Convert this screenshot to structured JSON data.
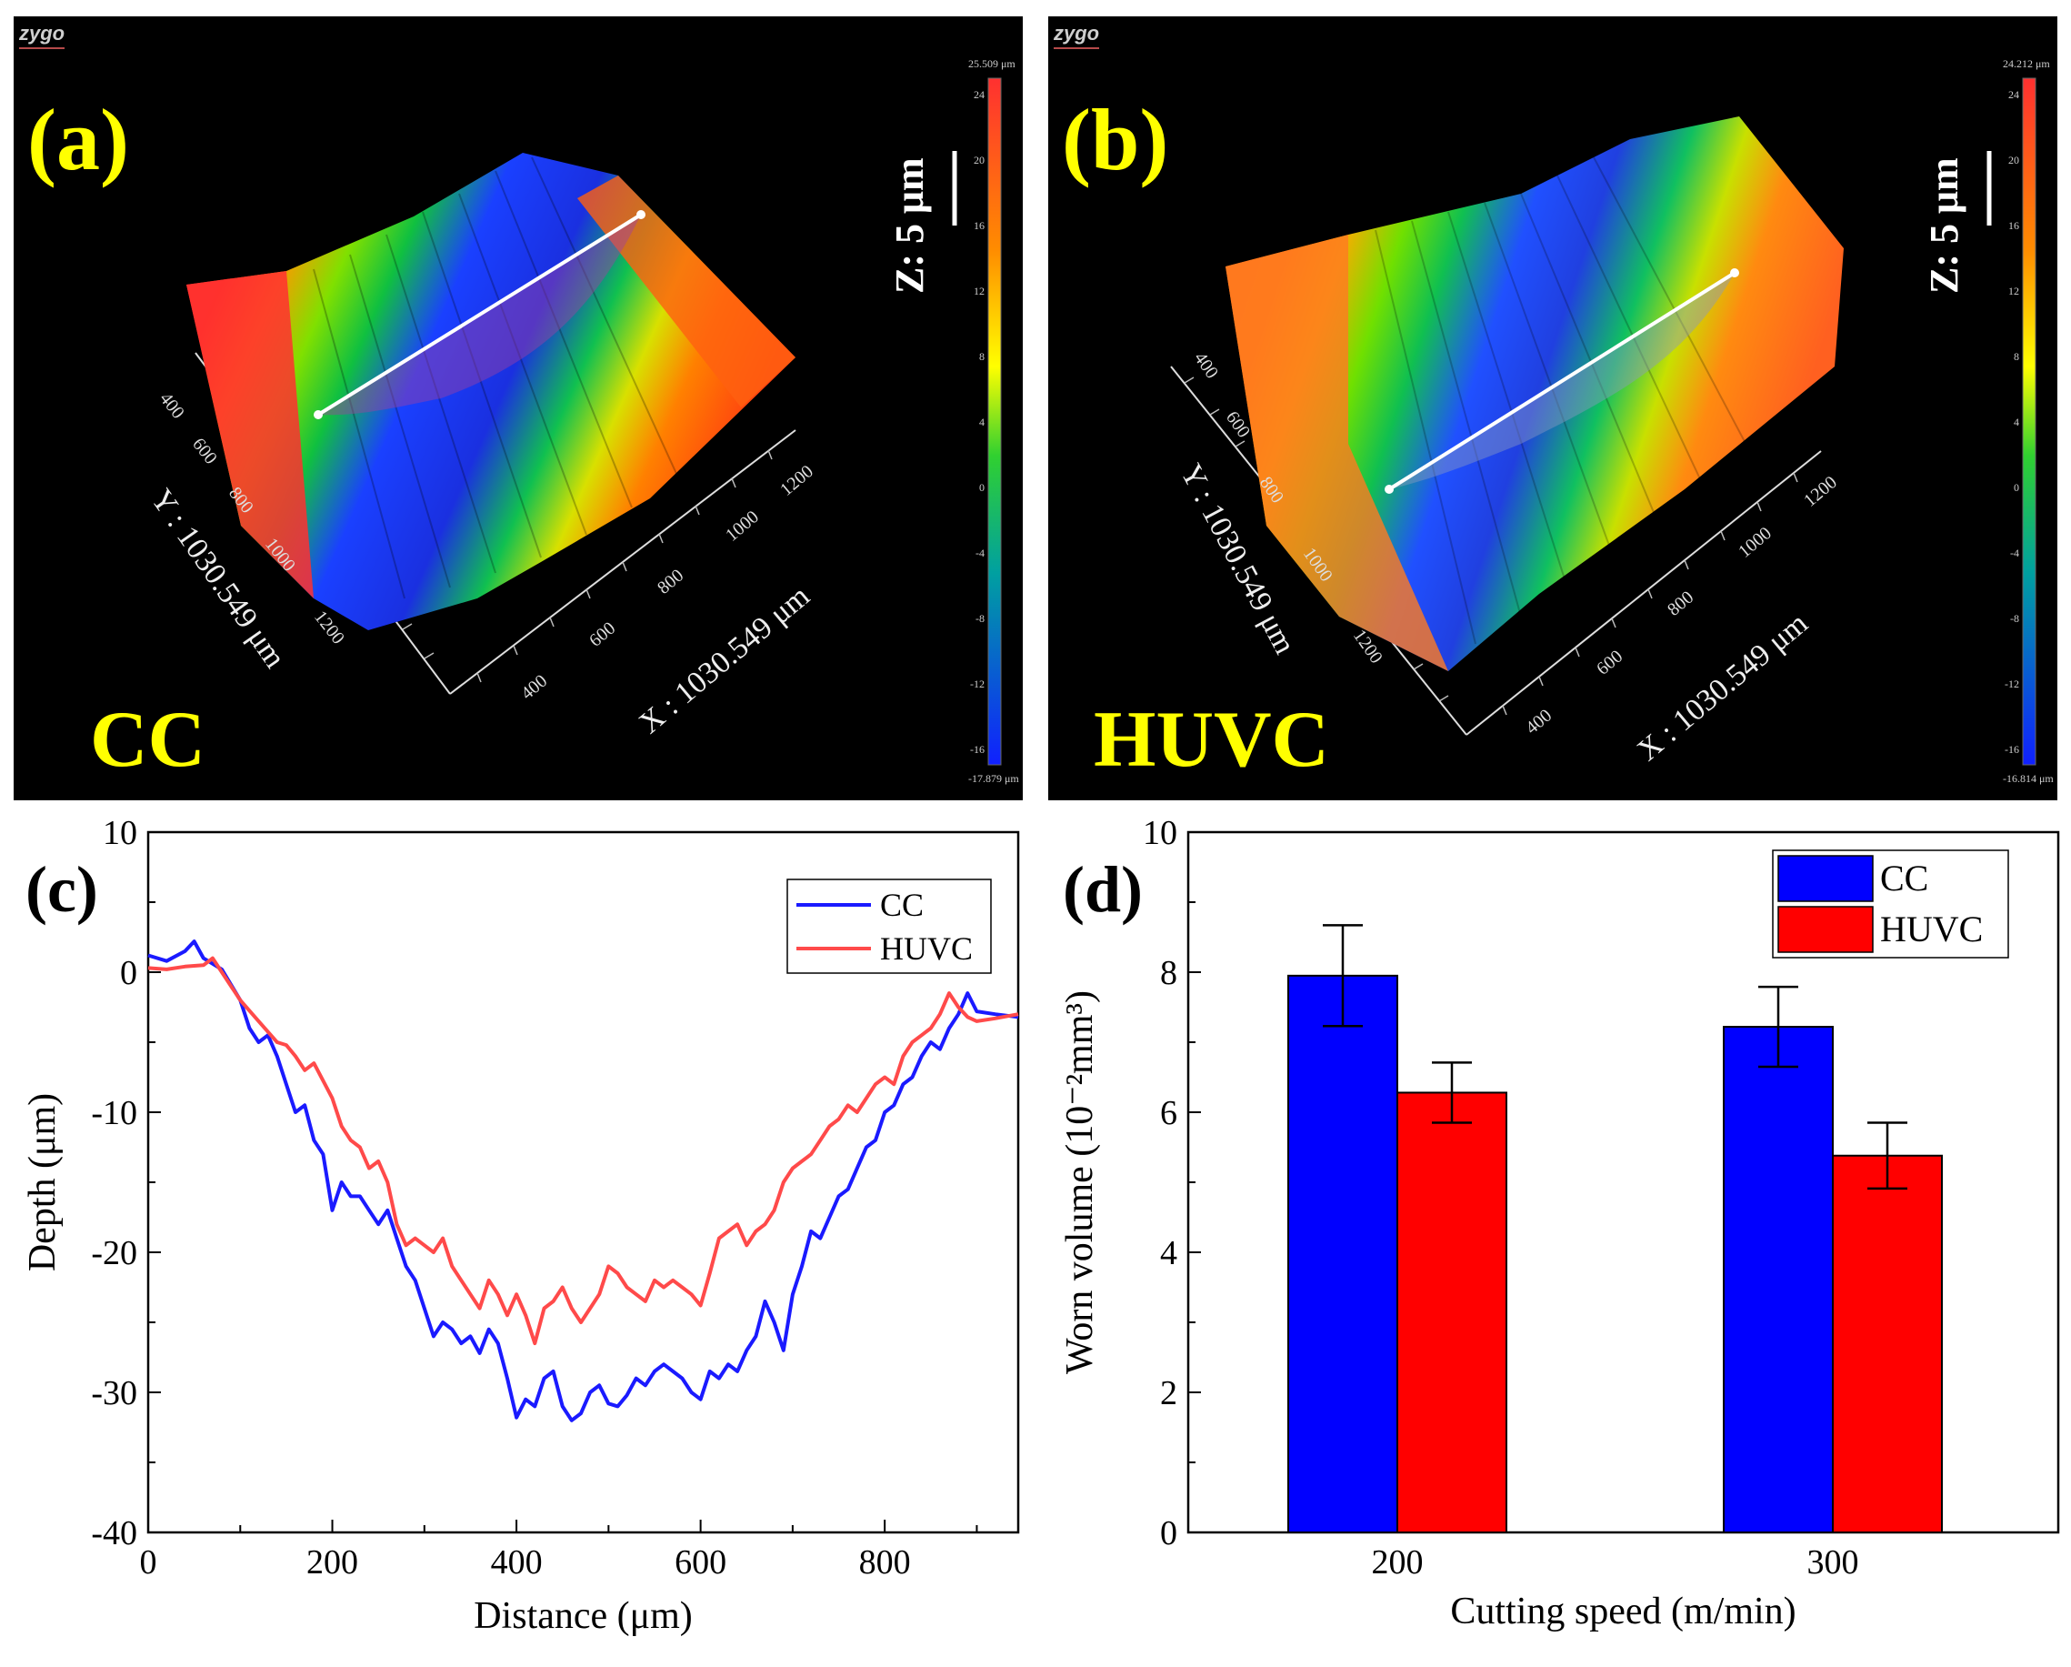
{
  "panels": {
    "a": {
      "label": "(a)",
      "method": "CC",
      "logo": "zygo",
      "z_scale": "Z: 5 μm",
      "colorbar_max": "25.509 μm",
      "colorbar_min": "-17.879 μm",
      "colorbar_ticks": [
        "24",
        "20",
        "16",
        "12",
        "8",
        "4",
        "0",
        "-4",
        "-8",
        "-12",
        "-16"
      ],
      "x_axis_label": "X : 1030.549 μm",
      "y_axis_label": "Y : 1030.549 μm",
      "x_ticks": [
        "400",
        "600",
        "800",
        "1000",
        "1200"
      ],
      "y_ticks": [
        "400",
        "600",
        "800",
        "1000",
        "1200"
      ]
    },
    "b": {
      "label": "(b)",
      "method": "HUVC",
      "logo": "zygo",
      "z_scale": "Z: 5 μm",
      "colorbar_max": "24.212 μm",
      "colorbar_min": "-16.814 μm",
      "colorbar_ticks": [
        "24",
        "20",
        "16",
        "12",
        "8",
        "4",
        "0",
        "-4",
        "-8",
        "-12",
        "-16"
      ],
      "x_axis_label": "X : 1030.549 μm",
      "y_axis_label": "Y : 1030.549 μm",
      "x_ticks": [
        "400",
        "600",
        "800",
        "1000",
        "1200"
      ],
      "y_ticks": [
        "400",
        "600",
        "800",
        "1000",
        "1200"
      ]
    }
  },
  "colors": {
    "cc": "#0000ff",
    "huvc": "#ff0000",
    "cc_line": "#1a1aff",
    "huvc_line": "#ff4a4a"
  },
  "chart_data": [
    {
      "id": "c",
      "label": "(c)",
      "type": "line",
      "xlabel": "Distance (μm)",
      "ylabel": "Depth (μm)",
      "xlim": [
        0,
        945
      ],
      "ylim": [
        -40,
        10
      ],
      "x_ticks": [
        0,
        200,
        400,
        600,
        800
      ],
      "y_ticks": [
        10,
        0,
        -10,
        -20,
        -30,
        -40
      ],
      "legend_position": "top-right",
      "series": [
        {
          "name": "CC",
          "x": [
            0,
            20,
            40,
            50,
            60,
            80,
            100,
            110,
            120,
            130,
            140,
            150,
            160,
            170,
            180,
            190,
            200,
            210,
            220,
            230,
            240,
            250,
            260,
            270,
            280,
            290,
            300,
            310,
            320,
            330,
            340,
            350,
            360,
            370,
            380,
            390,
            400,
            410,
            420,
            430,
            440,
            450,
            460,
            470,
            480,
            490,
            500,
            510,
            520,
            530,
            540,
            550,
            560,
            570,
            580,
            590,
            600,
            610,
            620,
            630,
            640,
            650,
            660,
            670,
            680,
            690,
            700,
            710,
            720,
            730,
            740,
            750,
            760,
            770,
            780,
            790,
            800,
            810,
            820,
            830,
            840,
            850,
            860,
            870,
            880,
            890,
            900,
            920,
            945
          ],
          "y": [
            1.2,
            0.8,
            1.5,
            2.2,
            1.0,
            0.2,
            -2,
            -4,
            -5,
            -4.5,
            -6,
            -8,
            -10,
            -9.5,
            -12,
            -13,
            -17,
            -15,
            -16,
            -16,
            -17,
            -18,
            -17,
            -19,
            -21,
            -22,
            -24,
            -26,
            -25,
            -25.5,
            -26.5,
            -26,
            -27.2,
            -25.5,
            -26.5,
            -29,
            -31.8,
            -30.5,
            -31,
            -29,
            -28.5,
            -31,
            -32,
            -31.5,
            -30,
            -29.5,
            -30.8,
            -31,
            -30.2,
            -29,
            -29.5,
            -28.5,
            -28,
            -28.5,
            -29,
            -30,
            -30.5,
            -28.5,
            -29,
            -28,
            -28.5,
            -27,
            -26,
            -23.5,
            -25,
            -27,
            -23,
            -21,
            -18.5,
            -19,
            -17.5,
            -16,
            -15.5,
            -14,
            -12.5,
            -12,
            -10,
            -9.5,
            -8,
            -7.5,
            -6,
            -5,
            -5.5,
            -4,
            -3,
            -1.5,
            -2.8,
            -3,
            -3.2
          ]
        },
        {
          "name": "HUVC",
          "x": [
            0,
            20,
            40,
            60,
            70,
            80,
            100,
            120,
            140,
            150,
            160,
            170,
            180,
            200,
            210,
            220,
            230,
            240,
            250,
            260,
            270,
            280,
            290,
            300,
            310,
            320,
            330,
            340,
            350,
            360,
            370,
            380,
            390,
            400,
            410,
            420,
            430,
            440,
            450,
            460,
            470,
            480,
            490,
            500,
            510,
            520,
            530,
            540,
            550,
            560,
            570,
            580,
            590,
            600,
            610,
            620,
            630,
            640,
            650,
            660,
            670,
            680,
            690,
            700,
            710,
            720,
            730,
            740,
            750,
            760,
            770,
            780,
            790,
            800,
            810,
            820,
            830,
            840,
            850,
            860,
            870,
            880,
            890,
            900,
            920,
            945
          ],
          "y": [
            0.3,
            0.2,
            0.4,
            0.5,
            1.0,
            0,
            -2,
            -3.5,
            -5,
            -5.2,
            -6,
            -7,
            -6.5,
            -9,
            -11,
            -12,
            -12.5,
            -14,
            -13.5,
            -15,
            -18,
            -19.5,
            -19,
            -19.5,
            -20,
            -19,
            -21,
            -22,
            -23,
            -24,
            -22,
            -23,
            -24.5,
            -23,
            -24.5,
            -26.5,
            -24,
            -23.5,
            -22.5,
            -24,
            -25,
            -24,
            -23,
            -21,
            -21.5,
            -22.5,
            -23,
            -23.5,
            -22,
            -22.5,
            -22,
            -22.5,
            -23,
            -23.8,
            -21.5,
            -19,
            -18.5,
            -18,
            -19.5,
            -18.5,
            -18,
            -17,
            -15,
            -14,
            -13.5,
            -13,
            -12,
            -11,
            -10.5,
            -9.5,
            -10,
            -9,
            -8,
            -7.5,
            -8,
            -6,
            -5,
            -4.5,
            -4,
            -3,
            -1.5,
            -2.5,
            -3.2,
            -3.5,
            -3.3,
            -3.0
          ]
        }
      ]
    },
    {
      "id": "d",
      "label": "(d)",
      "type": "bar",
      "xlabel": "Cutting speed (m/min)",
      "ylabel": "Worn volume (10⁻²mm³)",
      "categories": [
        "200",
        "300"
      ],
      "ylim": [
        0,
        10
      ],
      "y_ticks": [
        0,
        2,
        4,
        6,
        8,
        10
      ],
      "legend_position": "top-right",
      "series": [
        {
          "name": "CC",
          "values": [
            7.95,
            7.22
          ],
          "errors": [
            0.72,
            0.57
          ]
        },
        {
          "name": "HUVC",
          "values": [
            6.28,
            5.38
          ],
          "errors": [
            0.43,
            0.47
          ]
        }
      ]
    }
  ]
}
